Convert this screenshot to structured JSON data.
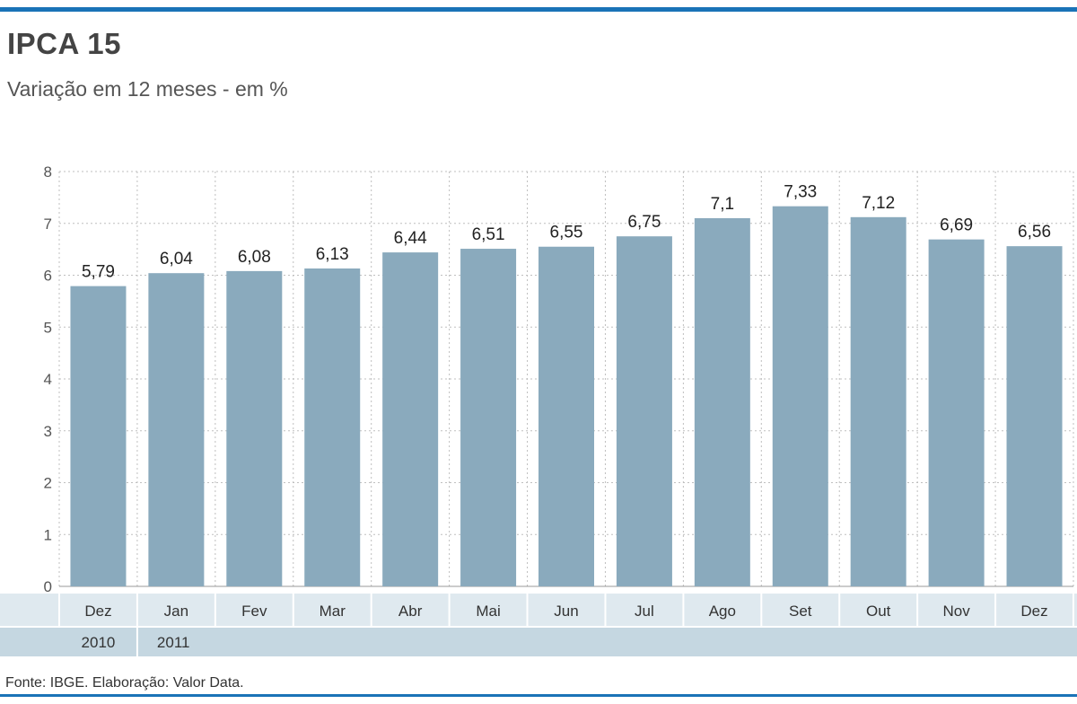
{
  "header": {
    "title": "IPCA 15",
    "subtitle": "Variação em 12 meses - em %"
  },
  "footer": {
    "source": "Fonte:  IBGE. Elaboração: Valor Data."
  },
  "colors": {
    "accent": "#1a73b7",
    "bar": "#8aaabd",
    "category_band": "#dfe9ef",
    "year_band": "#c5d7e1"
  },
  "chart_data": {
    "type": "bar",
    "title": "IPCA 15",
    "subtitle": "Variação em 12 meses - em %",
    "categories": [
      "Dez",
      "Jan",
      "Fev",
      "Mar",
      "Abr",
      "Mai",
      "Jun",
      "Jul",
      "Ago",
      "Set",
      "Out",
      "Nov",
      "Dez"
    ],
    "values": [
      5.79,
      6.04,
      6.08,
      6.13,
      6.44,
      6.51,
      6.55,
      6.75,
      7.1,
      7.33,
      7.12,
      6.69,
      6.56
    ],
    "value_labels": [
      "5,79",
      "6,04",
      "6,08",
      "6,13",
      "6,44",
      "6,51",
      "6,55",
      "6,75",
      "7,1",
      "7,33",
      "7,12",
      "6,69",
      "6,56"
    ],
    "years": [
      {
        "label": "2010",
        "start": 0,
        "end": 0
      },
      {
        "label": "2011",
        "start": 1,
        "end": 12
      }
    ],
    "ylim": [
      0,
      8
    ],
    "yticks": [
      "0",
      "1",
      "2",
      "3",
      "4",
      "5",
      "6",
      "7",
      "8"
    ],
    "grid": true,
    "xlabel": "",
    "ylabel": ""
  }
}
